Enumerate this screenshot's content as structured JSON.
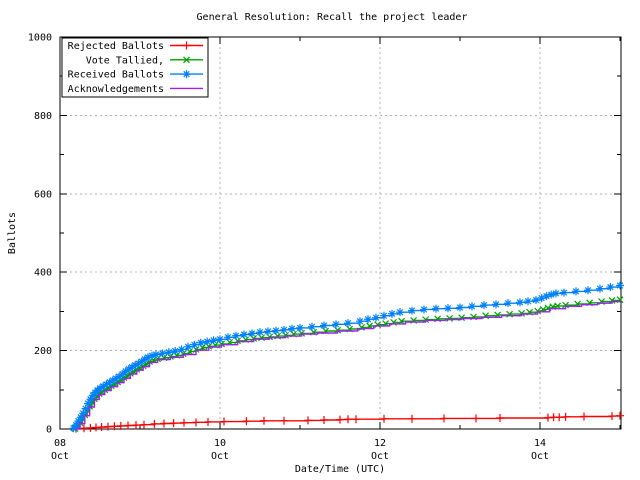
{
  "background": "#ffffff",
  "chart_data": {
    "type": "line",
    "title": "General Resolution: Recall the project leader",
    "xlabel": "Date/Time (UTC)",
    "ylabel": "Ballots",
    "ylim": [
      0,
      1000
    ],
    "x_range_days": [
      0,
      7.0125
    ],
    "x_epoch_note": "x values are days since 08 Oct 00:00 UTC",
    "grid": true,
    "legend_position": "top-left",
    "axis_color": "#000000",
    "grid_color": "#b0b0b0",
    "x_ticks_major": [
      {
        "day": 0,
        "label": [
          "08",
          "Oct"
        ]
      },
      {
        "day": 2,
        "label": [
          "10",
          "Oct"
        ]
      },
      {
        "day": 4,
        "label": [
          "12",
          "Oct"
        ]
      },
      {
        "day": 6,
        "label": [
          "14",
          "Oct"
        ]
      }
    ],
    "x_ticks_minor_days": [
      1,
      3,
      5,
      7
    ],
    "y_ticks_major": [
      0,
      200,
      400,
      600,
      800,
      1000
    ],
    "y_minor_step": 100,
    "series": [
      {
        "name": "Rejected Ballots",
        "color": "#ff0000",
        "marker": "plus",
        "points": [
          [
            0.2,
            1
          ],
          [
            0.3,
            2
          ],
          [
            0.38,
            3
          ],
          [
            0.45,
            4
          ],
          [
            0.52,
            5
          ],
          [
            0.6,
            6
          ],
          [
            0.68,
            7
          ],
          [
            0.76,
            8
          ],
          [
            0.85,
            9
          ],
          [
            0.95,
            10
          ],
          [
            1.05,
            11
          ],
          [
            1.18,
            13
          ],
          [
            1.3,
            14
          ],
          [
            1.42,
            15
          ],
          [
            1.55,
            16
          ],
          [
            1.7,
            17
          ],
          [
            1.85,
            18
          ],
          [
            2.05,
            19
          ],
          [
            2.33,
            20
          ],
          [
            2.55,
            21
          ],
          [
            2.8,
            21
          ],
          [
            3.1,
            22
          ],
          [
            3.3,
            23
          ],
          [
            3.5,
            24
          ],
          [
            3.6,
            25
          ],
          [
            3.7,
            25
          ],
          [
            4.05,
            26
          ],
          [
            4.4,
            26
          ],
          [
            4.8,
            27
          ],
          [
            5.2,
            27
          ],
          [
            5.5,
            28
          ],
          [
            6.1,
            29
          ],
          [
            6.17,
            30
          ],
          [
            6.24,
            30
          ],
          [
            6.32,
            31
          ],
          [
            6.55,
            32
          ],
          [
            6.9,
            33
          ],
          [
            7.0,
            34
          ]
        ]
      },
      {
        "name": "Vote Tallied,",
        "color": "#00a000",
        "marker": "cross",
        "points": [
          [
            0.19,
            1
          ],
          [
            0.22,
            8
          ],
          [
            0.25,
            16
          ],
          [
            0.28,
            26
          ],
          [
            0.31,
            36
          ],
          [
            0.34,
            47
          ],
          [
            0.37,
            58
          ],
          [
            0.4,
            68
          ],
          [
            0.43,
            77
          ],
          [
            0.46,
            84
          ],
          [
            0.49,
            90
          ],
          [
            0.52,
            95
          ],
          [
            0.56,
            100
          ],
          [
            0.6,
            105
          ],
          [
            0.64,
            110
          ],
          [
            0.68,
            115
          ],
          [
            0.72,
            120
          ],
          [
            0.76,
            125
          ],
          [
            0.8,
            131
          ],
          [
            0.84,
            137
          ],
          [
            0.88,
            142
          ],
          [
            0.92,
            147
          ],
          [
            0.96,
            152
          ],
          [
            1.0,
            156
          ],
          [
            1.04,
            161
          ],
          [
            1.08,
            167
          ],
          [
            1.12,
            172
          ],
          [
            1.17,
            176
          ],
          [
            1.22,
            179
          ],
          [
            1.3,
            182
          ],
          [
            1.38,
            185
          ],
          [
            1.46,
            188
          ],
          [
            1.54,
            192
          ],
          [
            1.62,
            198
          ],
          [
            1.7,
            203
          ],
          [
            1.78,
            208
          ],
          [
            1.86,
            211
          ],
          [
            1.94,
            214
          ],
          [
            2.02,
            217
          ],
          [
            2.12,
            221
          ],
          [
            2.22,
            225
          ],
          [
            2.32,
            228
          ],
          [
            2.42,
            231
          ],
          [
            2.52,
            233
          ],
          [
            2.62,
            235
          ],
          [
            2.72,
            237
          ],
          [
            2.82,
            239
          ],
          [
            2.92,
            242
          ],
          [
            3.02,
            244
          ],
          [
            3.17,
            247
          ],
          [
            3.32,
            250
          ],
          [
            3.47,
            252
          ],
          [
            3.62,
            255
          ],
          [
            3.77,
            259
          ],
          [
            3.87,
            263
          ],
          [
            3.97,
            266
          ],
          [
            4.07,
            269
          ],
          [
            4.17,
            272
          ],
          [
            4.27,
            275
          ],
          [
            4.42,
            277
          ],
          [
            4.57,
            279
          ],
          [
            4.72,
            281
          ],
          [
            4.87,
            282
          ],
          [
            5.02,
            284
          ],
          [
            5.17,
            286
          ],
          [
            5.32,
            289
          ],
          [
            5.47,
            291
          ],
          [
            5.62,
            293
          ],
          [
            5.77,
            295
          ],
          [
            5.87,
            298
          ],
          [
            5.97,
            301
          ],
          [
            6.04,
            305
          ],
          [
            6.1,
            309
          ],
          [
            6.16,
            312
          ],
          [
            6.22,
            314
          ],
          [
            6.32,
            316
          ],
          [
            6.47,
            319
          ],
          [
            6.62,
            322
          ],
          [
            6.77,
            325
          ],
          [
            6.9,
            328
          ],
          [
            7.0,
            330
          ]
        ]
      },
      {
        "name": "Received Ballots",
        "color": "#0080ff",
        "marker": "star",
        "points": [
          [
            0.17,
            2
          ],
          [
            0.2,
            10
          ],
          [
            0.23,
            20
          ],
          [
            0.26,
            30
          ],
          [
            0.29,
            40
          ],
          [
            0.32,
            52
          ],
          [
            0.35,
            65
          ],
          [
            0.38,
            76
          ],
          [
            0.41,
            86
          ],
          [
            0.44,
            93
          ],
          [
            0.47,
            99
          ],
          [
            0.5,
            104
          ],
          [
            0.54,
            109
          ],
          [
            0.58,
            114
          ],
          [
            0.62,
            119
          ],
          [
            0.66,
            124
          ],
          [
            0.7,
            129
          ],
          [
            0.74,
            134
          ],
          [
            0.78,
            140
          ],
          [
            0.82,
            147
          ],
          [
            0.86,
            153
          ],
          [
            0.9,
            158
          ],
          [
            0.94,
            163
          ],
          [
            0.98,
            167
          ],
          [
            1.02,
            172
          ],
          [
            1.06,
            178
          ],
          [
            1.1,
            183
          ],
          [
            1.15,
            187
          ],
          [
            1.2,
            190
          ],
          [
            1.28,
            193
          ],
          [
            1.36,
            196
          ],
          [
            1.44,
            199
          ],
          [
            1.52,
            203
          ],
          [
            1.6,
            210
          ],
          [
            1.68,
            215
          ],
          [
            1.76,
            220
          ],
          [
            1.84,
            223
          ],
          [
            1.92,
            226
          ],
          [
            2.0,
            229
          ],
          [
            2.1,
            234
          ],
          [
            2.2,
            238
          ],
          [
            2.3,
            241
          ],
          [
            2.4,
            244
          ],
          [
            2.5,
            247
          ],
          [
            2.6,
            249
          ],
          [
            2.7,
            251
          ],
          [
            2.8,
            253
          ],
          [
            2.9,
            256
          ],
          [
            3.0,
            258
          ],
          [
            3.15,
            261
          ],
          [
            3.3,
            264
          ],
          [
            3.45,
            267
          ],
          [
            3.6,
            270
          ],
          [
            3.75,
            275
          ],
          [
            3.85,
            280
          ],
          [
            3.95,
            284
          ],
          [
            4.05,
            289
          ],
          [
            4.15,
            294
          ],
          [
            4.25,
            298
          ],
          [
            4.4,
            302
          ],
          [
            4.55,
            305
          ],
          [
            4.7,
            307
          ],
          [
            4.85,
            308
          ],
          [
            5.0,
            310
          ],
          [
            5.15,
            313
          ],
          [
            5.3,
            316
          ],
          [
            5.45,
            318
          ],
          [
            5.6,
            321
          ],
          [
            5.75,
            323
          ],
          [
            5.85,
            326
          ],
          [
            5.95,
            329
          ],
          [
            6.02,
            334
          ],
          [
            6.08,
            339
          ],
          [
            6.14,
            343
          ],
          [
            6.2,
            346
          ],
          [
            6.3,
            348
          ],
          [
            6.45,
            351
          ],
          [
            6.6,
            354
          ],
          [
            6.75,
            358
          ],
          [
            6.88,
            362
          ],
          [
            7.0,
            366
          ]
        ]
      },
      {
        "name": "Acknowledgements",
        "color": "#a020f0",
        "marker": "none",
        "points": [
          [
            0.19,
            0
          ],
          [
            0.25,
            14
          ],
          [
            0.31,
            34
          ],
          [
            0.37,
            56
          ],
          [
            0.43,
            75
          ],
          [
            0.49,
            88
          ],
          [
            0.56,
            98
          ],
          [
            0.64,
            108
          ],
          [
            0.72,
            118
          ],
          [
            0.8,
            129
          ],
          [
            0.88,
            140
          ],
          [
            0.96,
            150
          ],
          [
            1.04,
            159
          ],
          [
            1.12,
            170
          ],
          [
            1.22,
            177
          ],
          [
            1.38,
            183
          ],
          [
            1.54,
            190
          ],
          [
            1.7,
            201
          ],
          [
            1.86,
            209
          ],
          [
            2.02,
            215
          ],
          [
            2.22,
            223
          ],
          [
            2.42,
            229
          ],
          [
            2.62,
            233
          ],
          [
            2.82,
            237
          ],
          [
            3.02,
            242
          ],
          [
            3.22,
            245
          ],
          [
            3.47,
            250
          ],
          [
            3.72,
            256
          ],
          [
            3.92,
            263
          ],
          [
            4.12,
            268
          ],
          [
            4.32,
            273
          ],
          [
            4.57,
            277
          ],
          [
            4.82,
            279
          ],
          [
            5.02,
            282
          ],
          [
            5.27,
            285
          ],
          [
            5.52,
            289
          ],
          [
            5.77,
            293
          ],
          [
            5.97,
            299
          ],
          [
            6.12,
            307
          ],
          [
            6.32,
            313
          ],
          [
            6.52,
            317
          ],
          [
            6.72,
            321
          ],
          [
            6.9,
            325
          ],
          [
            7.0,
            327
          ]
        ]
      }
    ]
  }
}
